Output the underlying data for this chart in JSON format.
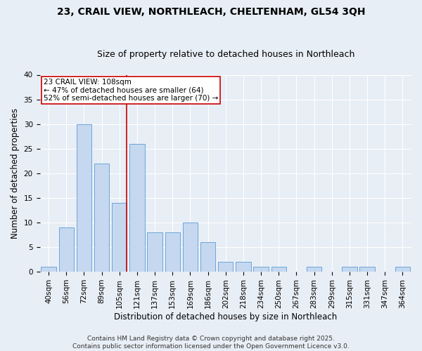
{
  "title1": "23, CRAIL VIEW, NORTHLEACH, CHELTENHAM, GL54 3QH",
  "title2": "Size of property relative to detached houses in Northleach",
  "xlabel": "Distribution of detached houses by size in Northleach",
  "ylabel": "Number of detached properties",
  "categories": [
    "40sqm",
    "56sqm",
    "72sqm",
    "89sqm",
    "105sqm",
    "121sqm",
    "137sqm",
    "153sqm",
    "169sqm",
    "186sqm",
    "202sqm",
    "218sqm",
    "234sqm",
    "250sqm",
    "267sqm",
    "283sqm",
    "299sqm",
    "315sqm",
    "331sqm",
    "347sqm",
    "364sqm"
  ],
  "values": [
    1,
    9,
    30,
    22,
    14,
    26,
    8,
    8,
    10,
    6,
    2,
    2,
    1,
    1,
    0,
    1,
    0,
    1,
    1,
    0,
    1
  ],
  "bar_color": "#c5d8f0",
  "bar_edge_color": "#5b9bd5",
  "annotation_text_line1": "23 CRAIL VIEW: 108sqm",
  "annotation_text_line2": "← 47% of detached houses are smaller (64)",
  "annotation_text_line3": "52% of semi-detached houses are larger (70) →",
  "annotation_box_facecolor": "#ffffff",
  "annotation_box_edgecolor": "#cc0000",
  "vline_color": "#cc0000",
  "vline_x_index": 4,
  "ylim": [
    0,
    40
  ],
  "yticks": [
    0,
    5,
    10,
    15,
    20,
    25,
    30,
    35,
    40
  ],
  "bg_color": "#e8eef5",
  "plot_bg_color": "#e8eef5",
  "footer_line1": "Contains HM Land Registry data © Crown copyright and database right 2025.",
  "footer_line2": "Contains public sector information licensed under the Open Government Licence v3.0.",
  "title1_fontsize": 10,
  "title2_fontsize": 9,
  "xlabel_fontsize": 8.5,
  "ylabel_fontsize": 8.5,
  "tick_fontsize": 7.5,
  "annotation_fontsize": 7.5,
  "footer_fontsize": 6.5,
  "grid_color": "#ffffff",
  "font_family": "DejaVu Sans"
}
